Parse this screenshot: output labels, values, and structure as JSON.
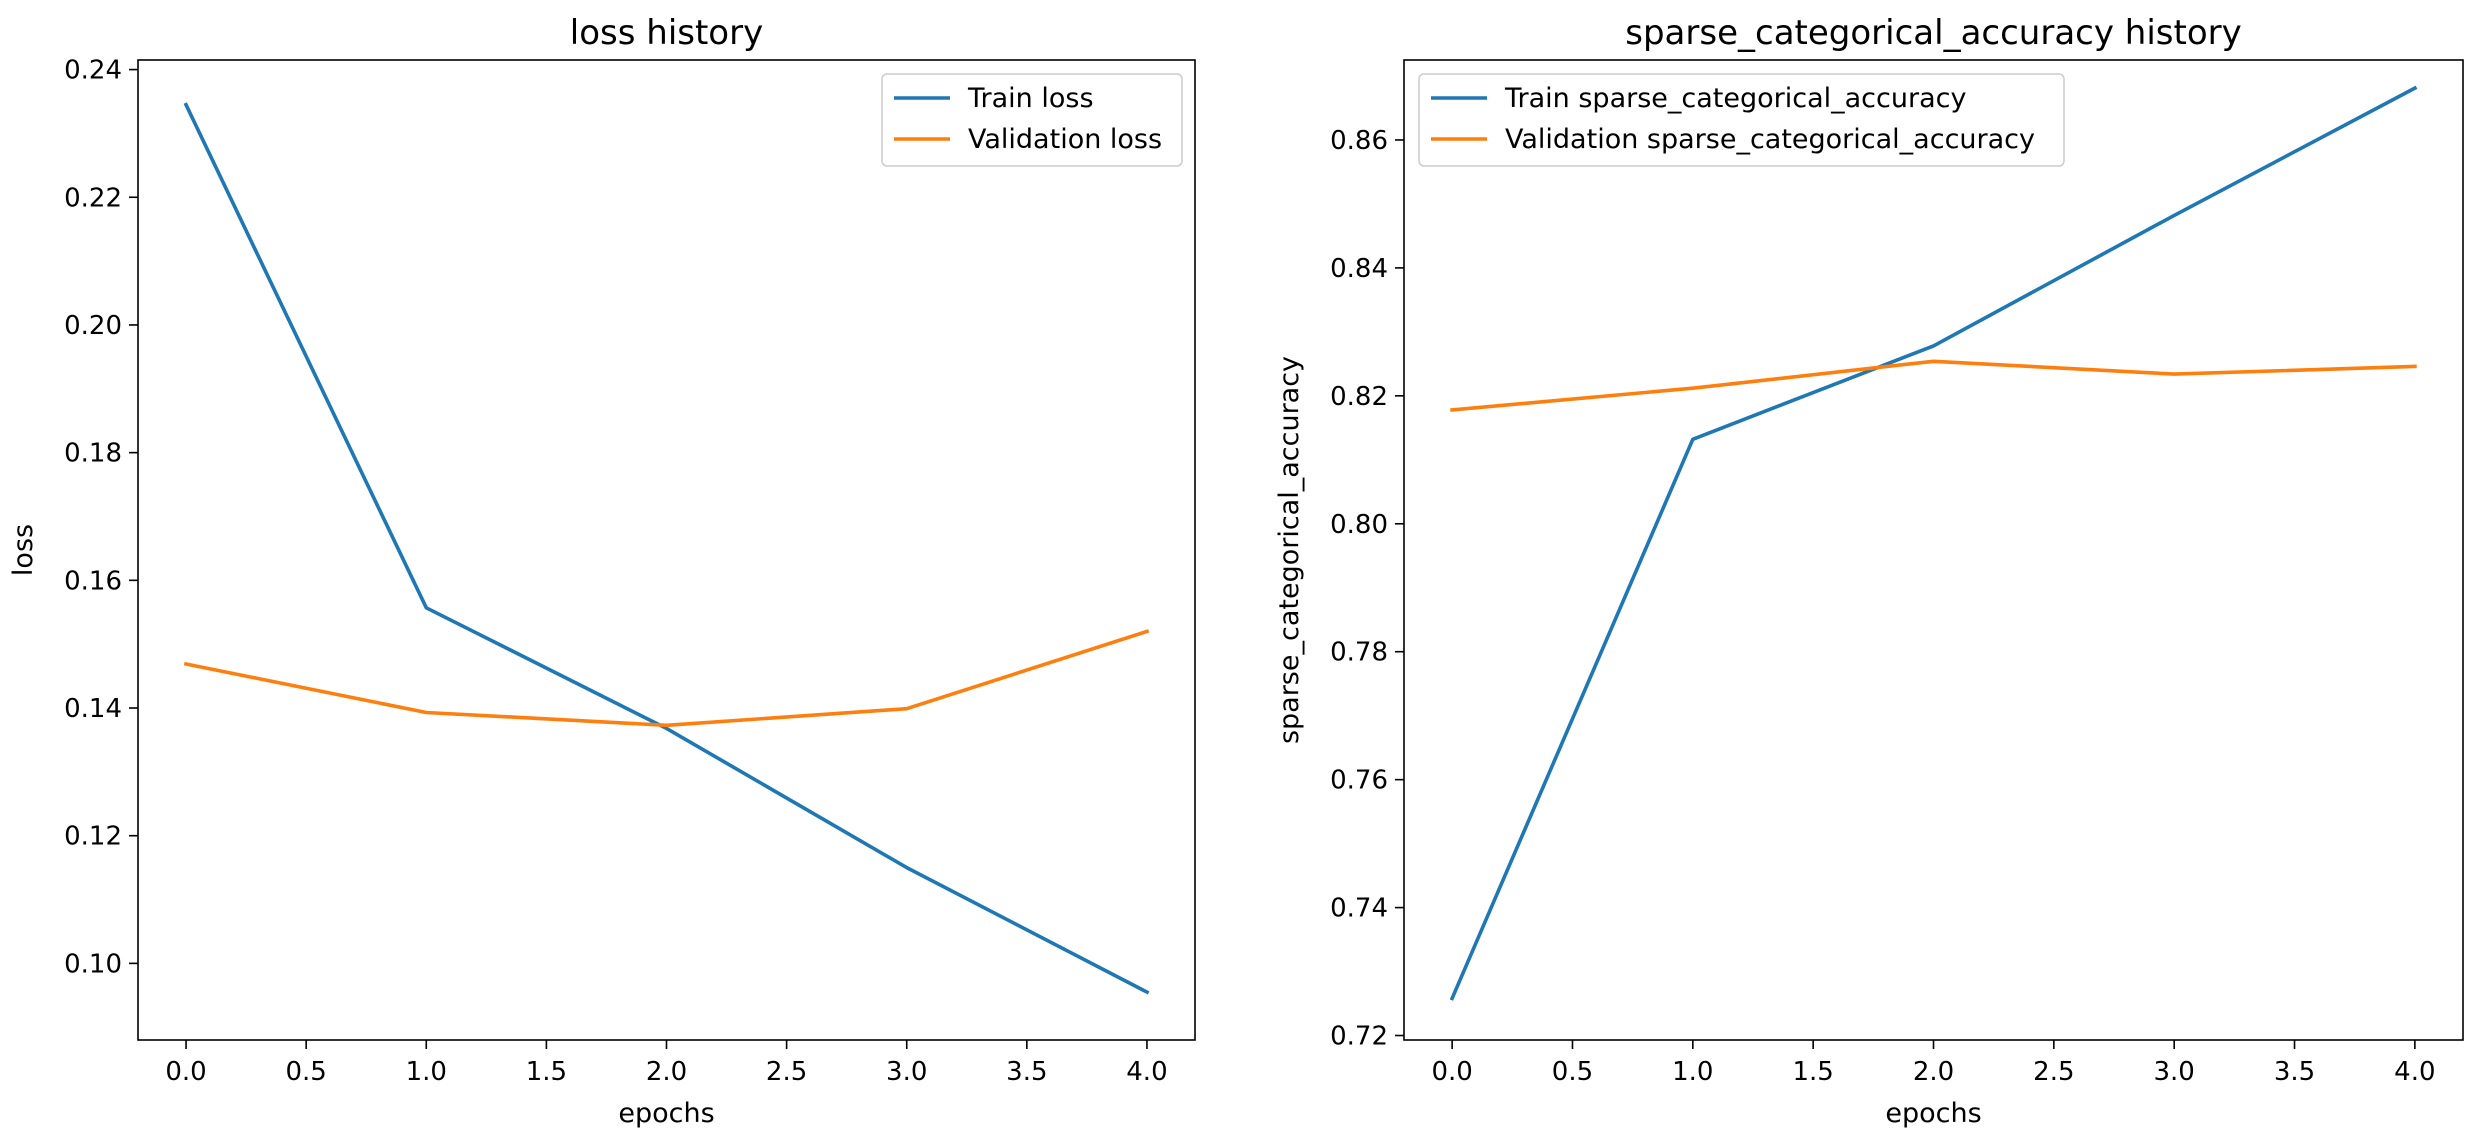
{
  "chart_data": [
    {
      "type": "line",
      "title": "loss history",
      "xlabel": "epochs",
      "ylabel": "loss",
      "xlim": [
        -0.2,
        4.2
      ],
      "ylim": [
        0.088,
        0.2415
      ],
      "xticks": [
        0.0,
        0.5,
        1.0,
        1.5,
        2.0,
        2.5,
        3.0,
        3.5,
        4.0
      ],
      "xtick_labels": [
        "0.0",
        "0.5",
        "1.0",
        "1.5",
        "2.0",
        "2.5",
        "3.0",
        "3.5",
        "4.0"
      ],
      "yticks": [
        0.1,
        0.12,
        0.14,
        0.16,
        0.18,
        0.2,
        0.22,
        0.24
      ],
      "ytick_labels": [
        "0.10",
        "0.12",
        "0.14",
        "0.16",
        "0.18",
        "0.20",
        "0.22",
        "0.24"
      ],
      "legend_position": "upper right",
      "grid": false,
      "x": [
        0,
        1,
        2,
        3,
        4
      ],
      "series": [
        {
          "name": "Train loss",
          "color": "#1f77b4",
          "values": [
            0.2345,
            0.1557,
            0.1368,
            0.115,
            0.0955
          ]
        },
        {
          "name": "Validation loss",
          "color": "#ff7f0e",
          "values": [
            0.1469,
            0.1393,
            0.1373,
            0.1399,
            0.152
          ]
        }
      ]
    },
    {
      "type": "line",
      "title": "sparse_categorical_accuracy history",
      "xlabel": "epochs",
      "ylabel": "sparse_categorical_accuracy",
      "xlim": [
        -0.2,
        4.2
      ],
      "ylim": [
        0.7193,
        0.8725
      ],
      "xticks": [
        0.0,
        0.5,
        1.0,
        1.5,
        2.0,
        2.5,
        3.0,
        3.5,
        4.0
      ],
      "xtick_labels": [
        "0.0",
        "0.5",
        "1.0",
        "1.5",
        "2.0",
        "2.5",
        "3.0",
        "3.5",
        "4.0"
      ],
      "yticks": [
        0.72,
        0.74,
        0.76,
        0.78,
        0.8,
        0.82,
        0.84,
        0.86
      ],
      "ytick_labels": [
        "0.72",
        "0.74",
        "0.76",
        "0.78",
        "0.80",
        "0.82",
        "0.84",
        "0.86"
      ],
      "legend_position": "upper left",
      "grid": false,
      "x": [
        0,
        1,
        2,
        3,
        4
      ],
      "series": [
        {
          "name": "Train sparse_categorical_accuracy",
          "color": "#1f77b4",
          "values": [
            0.7258,
            0.8132,
            0.8278,
            0.8482,
            0.8681
          ]
        },
        {
          "name": "Validation sparse_categorical_accuracy",
          "color": "#ff7f0e",
          "values": [
            0.8178,
            0.8212,
            0.8254,
            0.8234,
            0.8246
          ]
        }
      ]
    }
  ]
}
